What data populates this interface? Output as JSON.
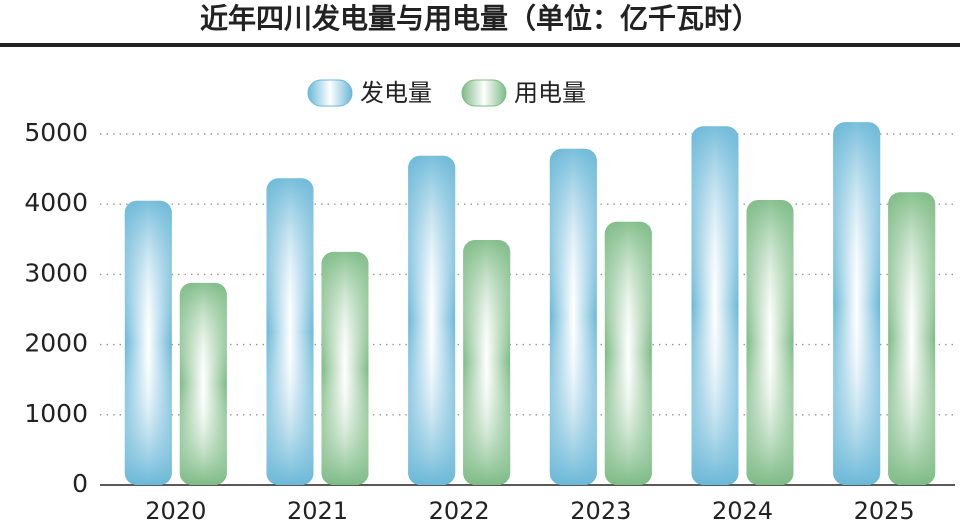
{
  "chart_data": {
    "type": "bar",
    "title": "近年四川发电量与用电量（单位：亿千瓦时）",
    "categories": [
      "2020",
      "2021",
      "2022",
      "2023",
      "2024",
      "2025"
    ],
    "series": [
      {
        "name": "发电量",
        "color": "#6bb8d8",
        "values": [
          4050,
          4370,
          4690,
          4790,
          5110,
          5170
        ]
      },
      {
        "name": "用电量",
        "color": "#7dbb85",
        "values": [
          2880,
          3320,
          3490,
          3750,
          4060,
          4170
        ]
      }
    ],
    "ylim": [
      0,
      5300
    ],
    "yticks": [
      0,
      1000,
      2000,
      3000,
      4000,
      5000
    ],
    "grid": true
  }
}
